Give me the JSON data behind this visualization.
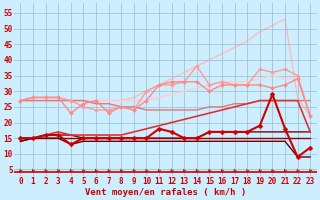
{
  "background_color": "#cceeff",
  "grid_color": "#99bbcc",
  "xlabel": "Vent moyen/en rafales ( km/h )",
  "ylabel_ticks": [
    5,
    10,
    15,
    20,
    25,
    30,
    35,
    40,
    45,
    50,
    55
  ],
  "x_values": [
    0,
    1,
    2,
    3,
    4,
    5,
    6,
    7,
    8,
    9,
    10,
    11,
    12,
    13,
    14,
    15,
    16,
    17,
    18,
    19,
    20,
    21,
    22,
    23
  ],
  "series": [
    {
      "data": [
        27,
        27,
        27,
        27,
        27,
        27,
        27,
        27,
        27,
        28,
        30,
        32,
        34,
        36,
        38,
        40,
        42,
        44,
        46,
        49,
        51,
        53,
        28,
        22
      ],
      "color": "#ffbbbb",
      "linewidth": 1.0,
      "marker": null,
      "zorder": 1
    },
    {
      "data": [
        27,
        28,
        28,
        28,
        27,
        27,
        27,
        27,
        27,
        27,
        27,
        28,
        29,
        30,
        31,
        32,
        33,
        33,
        33,
        34,
        35,
        34,
        34,
        22
      ],
      "color": "#ffcccc",
      "linewidth": 1.0,
      "marker": null,
      "zorder": 2
    },
    {
      "data": [
        27,
        28,
        28,
        28,
        27,
        25,
        24,
        24,
        25,
        24,
        30,
        32,
        32,
        33,
        38,
        32,
        33,
        32,
        32,
        37,
        36,
        37,
        35,
        22
      ],
      "color": "#ff9999",
      "linewidth": 1.0,
      "marker": "D",
      "markersize": 2.0,
      "zorder": 3
    },
    {
      "data": [
        27,
        28,
        28,
        28,
        23,
        26,
        27,
        23,
        25,
        24,
        27,
        32,
        33,
        33,
        33,
        30,
        32,
        32,
        32,
        32,
        31,
        32,
        34,
        22
      ],
      "color": "#ff8888",
      "linewidth": 1.0,
      "marker": "D",
      "markersize": 2.0,
      "zorder": 3
    },
    {
      "data": [
        27,
        27,
        27,
        27,
        27,
        27,
        26,
        26,
        25,
        25,
        24,
        24,
        24,
        24,
        24,
        25,
        25,
        26,
        26,
        27,
        27,
        27,
        27,
        27
      ],
      "color": "#dd7777",
      "linewidth": 1.0,
      "marker": null,
      "zorder": 2
    },
    {
      "data": [
        15,
        15,
        16,
        17,
        16,
        16,
        16,
        16,
        16,
        17,
        18,
        19,
        20,
        21,
        22,
        23,
        24,
        25,
        26,
        27,
        27,
        27,
        27,
        17
      ],
      "color": "#dd3333",
      "linewidth": 1.2,
      "marker": null,
      "zorder": 4
    },
    {
      "data": [
        15,
        15,
        16,
        16,
        13,
        15,
        15,
        15,
        15,
        15,
        15,
        18,
        17,
        15,
        15,
        17,
        17,
        17,
        17,
        19,
        29,
        18,
        9,
        12
      ],
      "color": "#cc0000",
      "linewidth": 1.5,
      "marker": "D",
      "markersize": 2.5,
      "zorder": 6
    },
    {
      "data": [
        15,
        15,
        15,
        15,
        15,
        15,
        15,
        15,
        15,
        15,
        15,
        15,
        15,
        15,
        15,
        15,
        15,
        15,
        15,
        15,
        15,
        15,
        15,
        15
      ],
      "color": "#990000",
      "linewidth": 1.0,
      "marker": null,
      "zorder": 3
    },
    {
      "data": [
        14,
        15,
        16,
        16,
        16,
        15,
        15,
        15,
        15,
        15,
        15,
        15,
        15,
        15,
        15,
        17,
        17,
        17,
        17,
        17,
        17,
        17,
        17,
        17
      ],
      "color": "#880000",
      "linewidth": 1.0,
      "marker": null,
      "zorder": 3
    },
    {
      "data": [
        14,
        15,
        15,
        15,
        13,
        14,
        14,
        14,
        14,
        14,
        14,
        14,
        14,
        14,
        14,
        14,
        14,
        14,
        14,
        14,
        14,
        14,
        9,
        9
      ],
      "color": "#660000",
      "linewidth": 1.0,
      "marker": null,
      "zorder": 3
    }
  ],
  "arrow_color": "#cc0000",
  "xlim": [
    -0.5,
    23.5
  ],
  "ylim": [
    3,
    58
  ],
  "axis_fontsize": 6.5,
  "tick_fontsize": 5.5
}
